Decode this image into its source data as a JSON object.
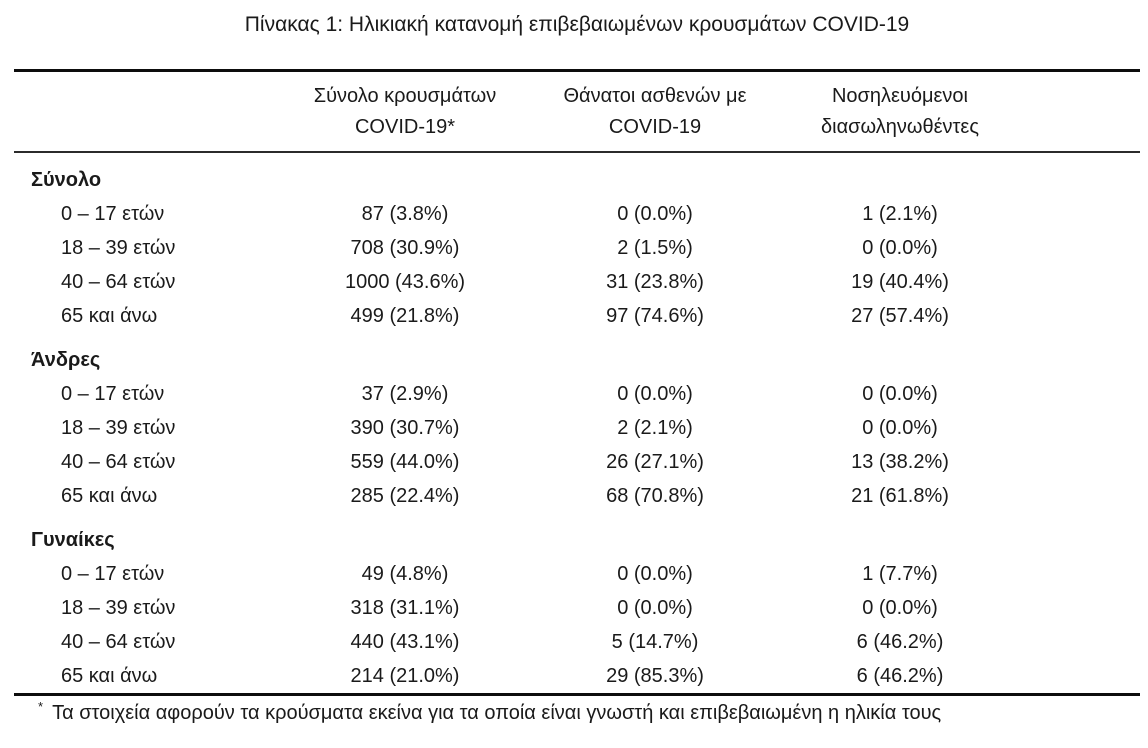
{
  "title": "Πίνακας 1: Ηλικιακή κατανομή επιβεβαιωμένων κρουσμάτων COVID-19",
  "colors": {
    "text": "#1a1a1a",
    "rule": "#0d0d0d",
    "background": "#ffffff"
  },
  "table": {
    "columns": [
      {
        "line1": "Σύνολο κρουσμάτων",
        "line2": "COVID-19*"
      },
      {
        "line1": "Θάνατοι ασθενών με",
        "line2": "COVID-19"
      },
      {
        "line1": "Νοσηλευόμενοι",
        "line2": "διασωληνωθέντες"
      }
    ],
    "sections": [
      {
        "label": "Σύνολο",
        "rows": [
          {
            "label": "0 – 17 ετών",
            "cases": "87 (3.8%)",
            "deaths": "0 (0.0%)",
            "intubated": "1 (2.1%)"
          },
          {
            "label": "18 – 39 ετών",
            "cases": "708 (30.9%)",
            "deaths": "2 (1.5%)",
            "intubated": "0 (0.0%)"
          },
          {
            "label": "40 – 64 ετών",
            "cases": "1000 (43.6%)",
            "deaths": "31 (23.8%)",
            "intubated": "19 (40.4%)"
          },
          {
            "label": "65 και άνω",
            "cases": "499 (21.8%)",
            "deaths": "97 (74.6%)",
            "intubated": "27 (57.4%)"
          }
        ]
      },
      {
        "label": "Άνδρες",
        "rows": [
          {
            "label": "0 – 17 ετών",
            "cases": "37 (2.9%)",
            "deaths": "0 (0.0%)",
            "intubated": "0 (0.0%)"
          },
          {
            "label": "18 – 39 ετών",
            "cases": "390 (30.7%)",
            "deaths": "2 (2.1%)",
            "intubated": "0 (0.0%)"
          },
          {
            "label": "40 – 64 ετών",
            "cases": "559 (44.0%)",
            "deaths": "26 (27.1%)",
            "intubated": "13 (38.2%)"
          },
          {
            "label": "65 και άνω",
            "cases": "285 (22.4%)",
            "deaths": "68 (70.8%)",
            "intubated": "21 (61.8%)"
          }
        ]
      },
      {
        "label": "Γυναίκες",
        "rows": [
          {
            "label": "0 – 17 ετών",
            "cases": "49 (4.8%)",
            "deaths": "0 (0.0%)",
            "intubated": "1 (7.7%)"
          },
          {
            "label": "18 – 39 ετών",
            "cases": "318 (31.1%)",
            "deaths": "0 (0.0%)",
            "intubated": "0 (0.0%)"
          },
          {
            "label": "40 – 64 ετών",
            "cases": "440 (43.1%)",
            "deaths": "5 (14.7%)",
            "intubated": "6 (46.2%)"
          },
          {
            "label": "65 και άνω",
            "cases": "214 (21.0%)",
            "deaths": "29 (85.3%)",
            "intubated": "6 (46.2%)"
          }
        ]
      }
    ]
  },
  "footnote": {
    "marker": "*",
    "text": "Τα στοιχεία αφορούν τα κρούσματα εκείνα για τα οποία είναι γνωστή και επιβεβαιωμένη η ηλικία τους"
  }
}
